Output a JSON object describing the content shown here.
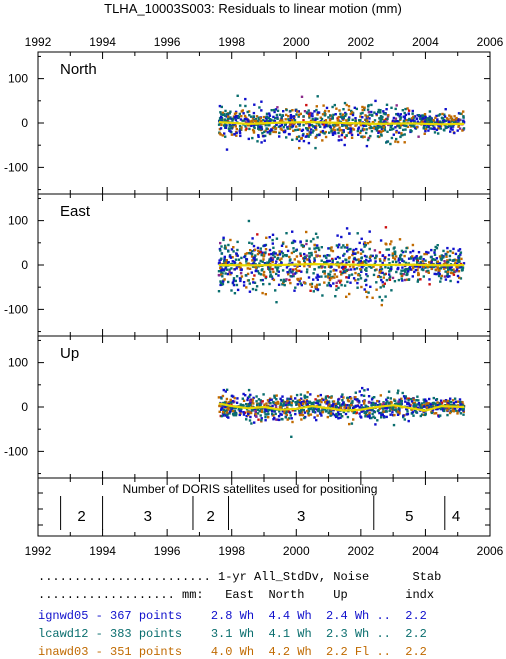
{
  "title": "TLHA_10003S003: Residuals to linear motion (mm)",
  "colors": {
    "ignwd05": "#1010cc",
    "lcawd12": "#0a6e6e",
    "inawd03": "#c06a00",
    "trend": "#e8d800",
    "red": "#cc1010",
    "purple": "#8a2a8a"
  },
  "chart_data": {
    "type": "scatter",
    "x_axis": {
      "range": [
        1992,
        2006
      ],
      "ticks": [
        "1992",
        "1994",
        "1996",
        "1998",
        "2000",
        "2002",
        "2004",
        "2006"
      ]
    },
    "panels": [
      {
        "label": "North",
        "ylim": [
          -160,
          160
        ],
        "yticks": [
          "100",
          "0",
          "-100"
        ],
        "data_span": [
          1997.6,
          2005.2
        ],
        "scatter_std": 18,
        "trend": [
          [
            1997.6,
            2
          ],
          [
            1998.5,
            -2
          ],
          [
            1999.5,
            1
          ],
          [
            2000.5,
            2
          ],
          [
            2001.5,
            0
          ],
          [
            2002.5,
            -2
          ],
          [
            2003.5,
            -1
          ],
          [
            2004.5,
            -3
          ],
          [
            2005.2,
            -2
          ]
        ]
      },
      {
        "label": "East",
        "ylim": [
          -160,
          160
        ],
        "yticks": [
          "100",
          "0",
          "-100"
        ],
        "data_span": [
          1997.6,
          2005.2
        ],
        "scatter_std": 30,
        "trend": [
          [
            1997.6,
            0
          ],
          [
            1998.5,
            -1
          ],
          [
            1999.5,
            0
          ],
          [
            2000.5,
            2
          ],
          [
            2001.5,
            1
          ],
          [
            2002.5,
            0
          ],
          [
            2003.5,
            1
          ],
          [
            2004.5,
            -1
          ],
          [
            2005.2,
            0
          ]
        ]
      },
      {
        "label": "Up",
        "ylim": [
          -160,
          160
        ],
        "yticks": [
          "100",
          "0",
          "-100"
        ],
        "data_span": [
          1997.6,
          2005.2
        ],
        "scatter_std": 14,
        "trend": [
          [
            1997.6,
            8
          ],
          [
            1998.0,
            2
          ],
          [
            1998.5,
            -3
          ],
          [
            1999.0,
            0
          ],
          [
            1999.5,
            -6
          ],
          [
            2000.0,
            -4
          ],
          [
            2000.5,
            2
          ],
          [
            2001.0,
            -3
          ],
          [
            2001.5,
            -8
          ],
          [
            2002.0,
            -6
          ],
          [
            2002.5,
            0
          ],
          [
            2003.0,
            4
          ],
          [
            2003.5,
            -2
          ],
          [
            2004.0,
            -8
          ],
          [
            2004.5,
            2
          ],
          [
            2005.2,
            0
          ]
        ]
      }
    ],
    "satellites_panel": {
      "title": "Number of DORIS satellites used for positioning",
      "boundaries": [
        1992.7,
        1994.0,
        1996.8,
        1997.9,
        2002.4,
        2004.6
      ],
      "segments": [
        {
          "label": "2",
          "from": 1992.7,
          "to": 1994.0
        },
        {
          "label": "3",
          "from": 1994.0,
          "to": 1996.8
        },
        {
          "label": "2",
          "from": 1996.8,
          "to": 1997.9
        },
        {
          "label": "3",
          "from": 1997.9,
          "to": 2002.4
        },
        {
          "label": "5",
          "from": 2002.4,
          "to": 2004.6
        },
        {
          "label": "4",
          "from": 2004.6,
          "to": 2005.3
        }
      ]
    }
  },
  "stats_table": {
    "header1": "........................ 1-yr All_StdDv, Noise      Stab",
    "header2": "................... mm:   East  North    Up        indx",
    "rows": [
      {
        "text": "ignwd05 - 367 points    2.8 Wh  4.4 Wh  2.4 Wh ..  2.2",
        "series": "ignwd05"
      },
      {
        "text": "lcawd12 - 383 points    3.1 Wh  4.1 Wh  2.3 Wh ..  2.2",
        "series": "lcawd12"
      },
      {
        "text": "inawd03 - 351 points    4.0 Wh  4.2 Wh  2.2 Fl ..  2.2",
        "series": "inawd03"
      }
    ]
  }
}
